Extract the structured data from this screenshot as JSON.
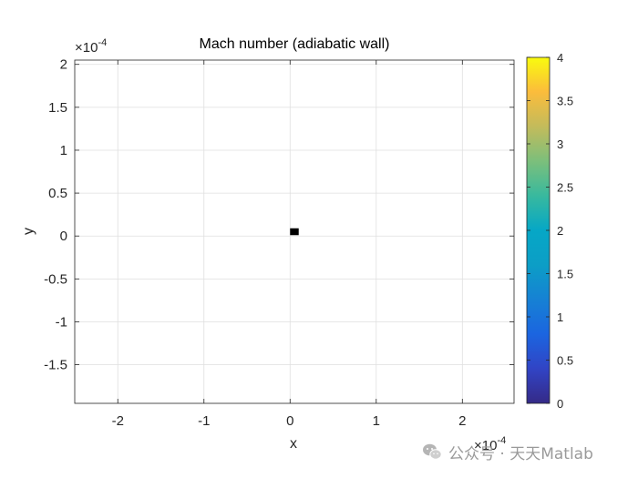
{
  "chart_data": {
    "type": "heatmap",
    "title": "Mach number (adiabatic wall)",
    "xlabel": "x",
    "ylabel": "y",
    "x_exponent_label": "×10",
    "x_exponent": "-4",
    "y_exponent_label": "×10",
    "y_exponent": "-4",
    "xlim": [
      -0.00025,
      0.00026
    ],
    "ylim": [
      -0.000195,
      0.000205
    ],
    "xticks": [
      -0.0002,
      -0.0001,
      0,
      0.0001,
      0.0002
    ],
    "xtick_labels": [
      "-2",
      "-1",
      "0",
      "1",
      "2"
    ],
    "yticks": [
      0.0002,
      0.00015,
      0.0001,
      5e-05,
      0,
      -5e-05,
      -0.0001,
      -0.00015
    ],
    "ytick_labels": [
      "2",
      "1.5",
      "1",
      "0.5",
      "0",
      "-0.5",
      "-1",
      "-1.5"
    ],
    "grid": true,
    "colormap": "parula",
    "colorbar": {
      "range": [
        0,
        4
      ],
      "ticks": [
        0,
        0.5,
        1,
        1.5,
        2,
        2.5,
        3,
        3.5,
        4
      ],
      "tick_labels": [
        "0",
        "0.5",
        "1",
        "1.5",
        "2",
        "2.5",
        "3",
        "3.5",
        "4"
      ],
      "placement": "right"
    },
    "markers": [
      {
        "x": 5e-06,
        "y": 5e-06,
        "width": 1e-05,
        "height": 8e-06,
        "color": "#000000"
      }
    ]
  },
  "watermark": {
    "icon": "wechat-icon",
    "text": "公众号 · 天天Matlab"
  }
}
